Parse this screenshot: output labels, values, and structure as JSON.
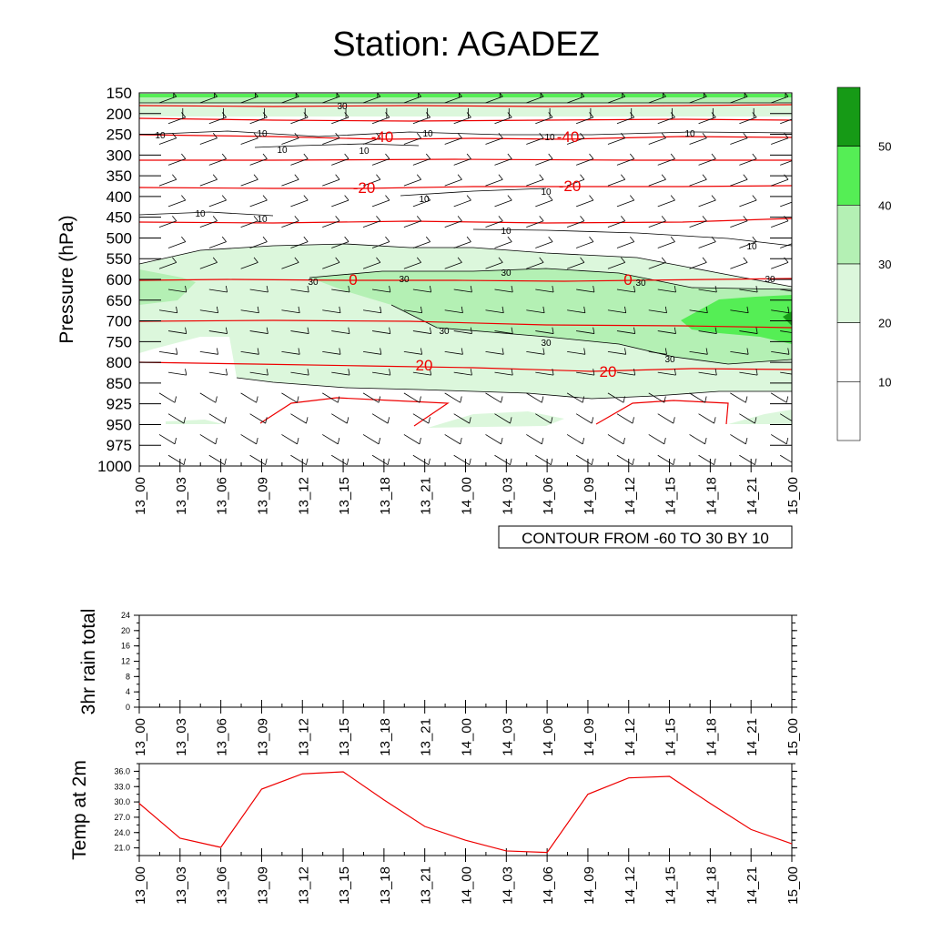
{
  "title": "Station: AGADEZ",
  "time_labels": [
    "13_00",
    "13_03",
    "13_06",
    "13_09",
    "13_12",
    "13_15",
    "13_18",
    "13_21",
    "14_00",
    "14_03",
    "14_06",
    "14_09",
    "14_12",
    "14_15",
    "14_18",
    "14_21",
    "15_00"
  ],
  "colors": {
    "shade_20_30": "#dcf7dc",
    "shade_30_40": "#b4f0b4",
    "shade_40_50": "#55ee55",
    "shade_50_up": "#169a16",
    "temp_line": "#ee0000",
    "contour_line": "#000000"
  },
  "chart_data": [
    {
      "type": "heatmap",
      "ylabel": "Pressure (hPa)",
      "pressure_levels": [
        150,
        200,
        250,
        300,
        350,
        400,
        450,
        500,
        550,
        600,
        650,
        700,
        750,
        800,
        850,
        925,
        950,
        975,
        1000
      ],
      "contour_info": "CONTOUR FROM -60 TO 30 BY 10",
      "colorbar": {
        "bounds": [
          10,
          20,
          30,
          40,
          50
        ],
        "labels": [
          "10",
          "20",
          "30",
          "40",
          "50"
        ]
      },
      "temperature_contour_labels": [
        "-40",
        "-40",
        "-20",
        "-20",
        "0",
        "0",
        "20",
        "20"
      ],
      "humidity_contour_labels": [
        "10",
        "10",
        "10",
        "10",
        "10",
        "10",
        "10",
        "10",
        "10",
        "10",
        "10",
        "10",
        "10",
        "30",
        "30",
        "30",
        "30",
        "30",
        "30",
        "30",
        "30",
        "30"
      ]
    },
    {
      "type": "line",
      "ylabel": "3hr rain total",
      "ylim": [
        0,
        24
      ],
      "yticks": [
        "0",
        "4",
        "8",
        "12",
        "16",
        "20",
        "24"
      ],
      "values": [
        0,
        0,
        0,
        0,
        0,
        0,
        0,
        0,
        0,
        0,
        0,
        0,
        0,
        0,
        0,
        0,
        0
      ]
    },
    {
      "type": "line",
      "ylabel": "Temp at 2m",
      "ylim": [
        19.5,
        37.5
      ],
      "yticks": [
        "21.0",
        "24.0",
        "27.0",
        "30.0",
        "33.0",
        "36.0"
      ],
      "values": [
        29.7,
        22.9,
        21.1,
        32.5,
        35.5,
        35.9,
        30.4,
        25.2,
        22.5,
        20.4,
        20.1,
        31.5,
        34.7,
        35.0,
        29.7,
        24.6,
        21.8
      ]
    }
  ]
}
